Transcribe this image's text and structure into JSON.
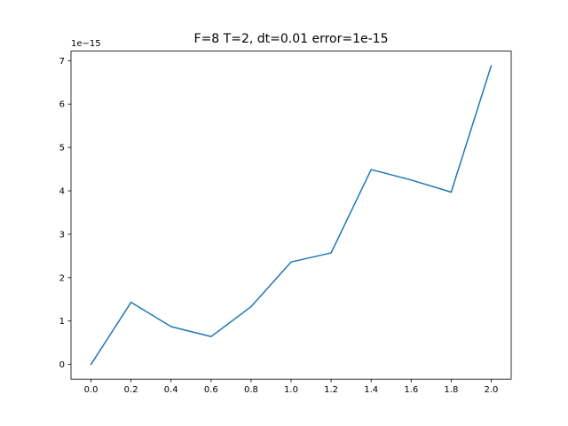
{
  "chart_data": {
    "type": "line",
    "title": "F=8 T=2, dt=0.01 error=1e-15",
    "offset_label": "1e−15",
    "x": [
      0.0,
      0.2,
      0.4,
      0.6,
      0.8,
      1.0,
      1.2,
      1.4,
      1.6,
      1.8,
      2.0
    ],
    "series": [
      {
        "values": [
          0.0,
          1.43,
          0.87,
          0.64,
          1.33,
          2.36,
          2.57,
          4.49,
          4.25,
          3.97,
          6.88
        ],
        "color": "#1f77b4"
      }
    ],
    "xlim": [
      -0.1,
      2.1
    ],
    "ylim": [
      -0.34,
      7.22
    ],
    "xticks": [
      0.0,
      0.2,
      0.4,
      0.6,
      0.8,
      1.0,
      1.2,
      1.4,
      1.6,
      1.8,
      2.0
    ],
    "xtick_labels": [
      "0.0",
      "0.2",
      "0.4",
      "0.6",
      "0.8",
      "1.0",
      "1.2",
      "1.4",
      "1.6",
      "1.8",
      "2.0"
    ],
    "yticks": [
      0,
      1,
      2,
      3,
      4,
      5,
      6,
      7
    ],
    "ytick_labels": [
      "0",
      "1",
      "2",
      "3",
      "4",
      "5",
      "6",
      "7"
    ],
    "grid": false,
    "legend": "none"
  }
}
